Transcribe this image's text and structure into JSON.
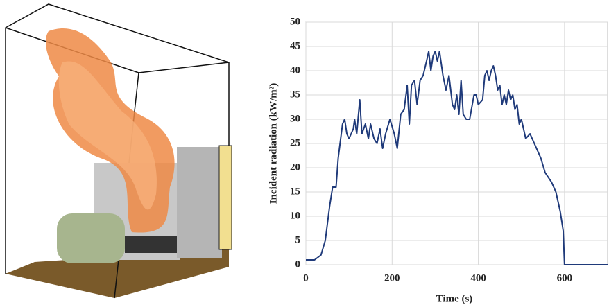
{
  "chart_data": {
    "type": "line",
    "x_label": "Time (s)",
    "y_label": "Incident radiation (kW/m²)",
    "xlim": [
      0,
      700
    ],
    "xticks": [
      0,
      200,
      400,
      600
    ],
    "ylim": [
      0,
      50
    ],
    "yticks": [
      0,
      5,
      10,
      15,
      20,
      25,
      30,
      35,
      40,
      45,
      50
    ],
    "grid": true,
    "series": [
      {
        "color": "#1f3a7a",
        "x": [
          0,
          20,
          35,
          45,
          55,
          62,
          70,
          75,
          85,
          90,
          95,
          100,
          110,
          113,
          118,
          125,
          130,
          138,
          145,
          150,
          158,
          165,
          172,
          178,
          185,
          195,
          205,
          212,
          220,
          228,
          235,
          240,
          245,
          252,
          258,
          265,
          272,
          280,
          285,
          290,
          295,
          300,
          305,
          310,
          318,
          325,
          332,
          340,
          345,
          350,
          355,
          360,
          365,
          372,
          380,
          390,
          395,
          400,
          410,
          415,
          420,
          425,
          430,
          435,
          440,
          445,
          450,
          455,
          460,
          465,
          470,
          475,
          480,
          485,
          490,
          495,
          500,
          510,
          520,
          530,
          545,
          555,
          570,
          580,
          590,
          597,
          600,
          650,
          700
        ],
        "values": [
          1,
          1,
          2,
          5,
          12,
          16,
          16,
          22,
          29,
          30,
          27,
          26,
          28,
          30,
          27,
          34,
          27,
          29,
          26,
          29,
          26,
          25,
          28,
          24,
          27,
          30,
          27,
          24,
          31,
          32,
          37,
          29,
          37,
          38,
          33,
          38,
          39,
          42,
          44,
          40,
          43,
          44,
          42,
          44,
          39,
          36,
          39,
          33,
          32,
          35,
          31,
          38,
          31,
          30,
          30,
          35,
          35,
          33,
          34,
          39,
          40,
          38,
          40,
          41,
          39,
          36,
          37,
          33,
          35,
          33,
          36,
          34,
          35,
          32,
          33,
          29,
          30,
          26,
          27,
          25,
          22,
          19,
          17,
          15,
          11,
          7,
          0,
          0,
          0
        ]
      }
    ]
  }
}
